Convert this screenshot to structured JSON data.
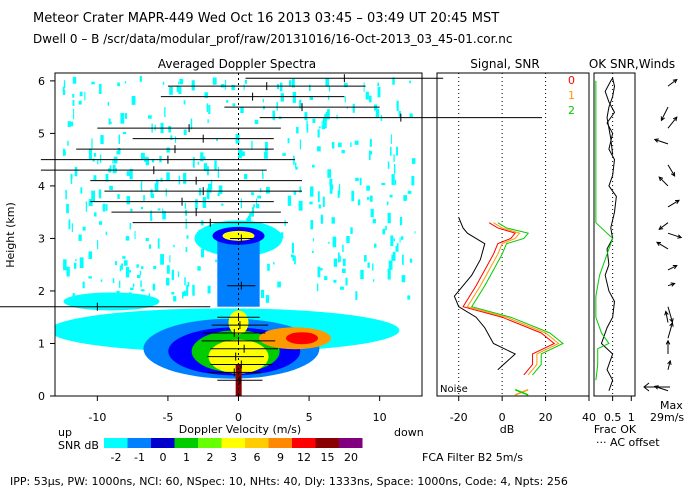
{
  "header": {
    "line1": "Meteor Crater   MAPR-449   Wed Oct 16 2013 03:45 – 03:49 UT 20:45 MST",
    "line2": "Dwell   0 –   B    /scr/data/modular_prof/raw/20131016/16-Oct-2013_03_45-01.cor.nc"
  },
  "footer": {
    "text": "IPP:  53μs,   PW: 1000ns,   NCI:  60,   NSpec: 10,  NHts: 40,   Dly: 1333ns,   Space: 1000ns,   Code: 4,   Npts: 256",
    "fca": "FCA Filter B2   5m/s"
  },
  "colors": {
    "cyan": "#00ffff",
    "blue": "#0000ff",
    "green": "#00cc00",
    "yellow": "#ffff00",
    "orange": "#ff9900",
    "red": "#ff0000",
    "wine": "#880000",
    "purple": "#800080",
    "gray": "#a0a0a0"
  },
  "chart_data": [
    {
      "type": "heatmap",
      "title": "Averaged Doppler Spectra",
      "xlabel": "Doppler Velocity (m/s)",
      "ylabel": "Height (km)",
      "xlim": [
        -13,
        13
      ],
      "ylim": [
        0,
        6.15
      ],
      "xticks": [
        -10,
        -5,
        0,
        5,
        10
      ],
      "yticks": [
        0,
        1,
        2,
        3,
        4,
        5,
        6
      ],
      "up_label": "up",
      "down_label": "down",
      "colorbar": {
        "label": "SNR dB",
        "levels": [
          "-2",
          "-1",
          "0",
          "1",
          "2",
          "3",
          "6",
          "9",
          "12",
          "15",
          "20"
        ],
        "colors": [
          "#00ffff",
          "#0080ff",
          "#0000cc",
          "#00cc00",
          "#66ff00",
          "#ffff00",
          "#ffcc00",
          "#ff8800",
          "#ff0000",
          "#880000",
          "#800080"
        ]
      },
      "moment_bars": [
        {
          "height": 0.3,
          "center": 0.1,
          "half_width": 1.6
        },
        {
          "height": 0.45,
          "center": -0.3,
          "half_width": 1.9
        },
        {
          "height": 0.6,
          "center": 0.2,
          "half_width": 2.2
        },
        {
          "height": 0.75,
          "center": -0.2,
          "half_width": 2.0
        },
        {
          "height": 0.9,
          "center": 0.4,
          "half_width": 2.4
        },
        {
          "height": 1.05,
          "center": 0.0,
          "half_width": 2.6
        },
        {
          "height": 1.2,
          "center": -0.3,
          "half_width": 2.2
        },
        {
          "height": 1.35,
          "center": 0.1,
          "half_width": 2.0
        },
        {
          "height": 1.5,
          "center": 0.0,
          "half_width": 1.5
        },
        {
          "height": 1.7,
          "center": -10.0,
          "half_width": 8.0
        },
        {
          "height": 2.1,
          "center": 0.2,
          "half_width": 1.0
        },
        {
          "height": 3.0,
          "center": 0.2,
          "half_width": 0.8
        },
        {
          "height": 3.3,
          "center": -2.0,
          "half_width": 5.5
        },
        {
          "height": 3.5,
          "center": -3.0,
          "half_width": 6.0
        },
        {
          "height": 3.7,
          "center": -4.0,
          "half_width": 6.5
        },
        {
          "height": 3.9,
          "center": -2.5,
          "half_width": 7.0
        },
        {
          "height": 4.1,
          "center": -3.0,
          "half_width": 7.5
        },
        {
          "height": 4.3,
          "center": -6.0,
          "half_width": 8.0
        },
        {
          "height": 4.5,
          "center": -5.0,
          "half_width": 9.0
        },
        {
          "height": 4.7,
          "center": -4.5,
          "half_width": 7.0
        },
        {
          "height": 4.9,
          "center": -2.5,
          "half_width": 5.0
        },
        {
          "height": 5.1,
          "center": -3.5,
          "half_width": 6.5
        },
        {
          "height": 5.3,
          "center": 11.5,
          "half_width": 10.0
        },
        {
          "height": 5.5,
          "center": 4.5,
          "half_width": 5.5
        },
        {
          "height": 5.7,
          "center": 1.0,
          "half_width": 6.5
        },
        {
          "height": 5.9,
          "center": 2.0,
          "half_width": 7.0
        },
        {
          "height": 6.05,
          "center": 7.5,
          "half_width": 7.0
        }
      ]
    },
    {
      "type": "line",
      "title": "Signal, SNR",
      "xlabel": "dB",
      "xlim": [
        -30,
        40
      ],
      "ylim": [
        0,
        6.15
      ],
      "xticks": [
        -20,
        0,
        20,
        40
      ],
      "noise_label": "Noise",
      "legend": [
        "0",
        "1",
        "2"
      ],
      "series": [
        {
          "name": "signal",
          "color": "#000000",
          "x": [
            -2,
            6,
            -4,
            -8,
            -12,
            -20,
            -22,
            -14,
            -10,
            -8,
            -16,
            -18,
            -20
          ],
          "y": [
            0.5,
            0.8,
            1.0,
            1.3,
            1.5,
            1.7,
            1.9,
            2.3,
            2.6,
            2.9,
            3.1,
            3.2,
            3.4
          ]
        },
        {
          "name": "0",
          "color": "#ff0000",
          "x": [
            10,
            14,
            14,
            24,
            18,
            0,
            -18,
            -12,
            -8,
            -4,
            -2,
            4,
            6,
            -2,
            -6
          ],
          "y": [
            0.4,
            0.6,
            0.8,
            1.0,
            1.2,
            1.5,
            1.7,
            2.1,
            2.4,
            2.7,
            2.9,
            3.0,
            3.1,
            3.2,
            3.3
          ]
        },
        {
          "name": "1",
          "color": "#ff9900",
          "x": [
            12,
            16,
            16,
            26,
            20,
            2,
            -16,
            -10,
            -6,
            -2,
            0,
            6,
            8,
            0,
            -4
          ],
          "y": [
            0.4,
            0.6,
            0.8,
            1.0,
            1.2,
            1.5,
            1.7,
            2.1,
            2.4,
            2.7,
            2.9,
            3.0,
            3.1,
            3.2,
            3.3
          ]
        },
        {
          "name": "2",
          "color": "#00cc00",
          "x": [
            14,
            18,
            18,
            28,
            22,
            4,
            -14,
            -8,
            -4,
            0,
            2,
            10,
            12,
            2,
            -2
          ],
          "y": [
            0.4,
            0.6,
            0.8,
            1.0,
            1.2,
            1.5,
            1.7,
            2.1,
            2.4,
            2.7,
            2.9,
            3.0,
            3.1,
            3.2,
            3.3
          ]
        }
      ]
    },
    {
      "type": "line",
      "title": "OK SNR,Winds",
      "xlabel": "Frac OK",
      "xlim": [
        0,
        1.1
      ],
      "ylim": [
        0,
        6.15
      ],
      "xticks": [
        "0.5",
        "1"
      ],
      "ac_label": "··· AC offset",
      "max_label": "Max",
      "max_value": "29m/s",
      "series": [
        {
          "name": "frac_ok",
          "color": "#000000",
          "x": [
            0.4,
            0.5,
            0.35,
            0.5,
            0.2,
            0.35,
            0.5,
            0.55,
            0.4,
            0.3,
            0.4,
            0.35,
            0.5,
            0.45,
            0.55,
            0.6,
            0.4,
            0.5,
            0.55,
            0.4,
            0.5,
            0.35,
            0.55,
            0.4,
            0.3,
            0.45,
            0.5,
            0.55,
            0.5,
            0.4,
            0.35,
            0.4,
            0.45,
            0.5
          ],
          "y": [
            0.1,
            0.3,
            0.5,
            0.8,
            1.0,
            1.3,
            1.5,
            1.8,
            2.0,
            2.3,
            2.5,
            2.8,
            3.0,
            3.2,
            3.5,
            3.8,
            4.0,
            4.2,
            4.5,
            4.7,
            5.0,
            5.2,
            5.4,
            5.6,
            5.8,
            6.0,
            6.05,
            5.9,
            5.7,
            5.5,
            5.3,
            5.1,
            4.9,
            4.6
          ]
        },
        {
          "name": "snr_ok",
          "color": "#00cc00",
          "x": [
            0.05,
            0.1,
            0.1,
            0.4,
            0.2,
            0.05,
            0.05,
            0.15,
            0.3,
            0.4,
            0.5,
            0.35,
            0.05,
            0.05,
            0.05
          ],
          "y": [
            0.3,
            0.6,
            0.9,
            1.0,
            1.2,
            1.5,
            1.9,
            2.3,
            2.6,
            2.8,
            3.0,
            3.1,
            3.3,
            4.5,
            6.0
          ]
        }
      ],
      "winds": [
        {
          "height": 0.1,
          "u": -0.6,
          "v": 0.2
        },
        {
          "height": 0.5,
          "u": 0.1,
          "v": 0.4
        },
        {
          "height": 0.8,
          "u": 0.0,
          "v": 0.6
        },
        {
          "height": 1.1,
          "u": 0.2,
          "v": 0.7
        },
        {
          "height": 1.4,
          "u": -0.1,
          "v": 0.5
        },
        {
          "height": 1.7,
          "u": 0.2,
          "v": -0.7
        },
        {
          "height": 2.1,
          "u": 0.3,
          "v": 0.1
        },
        {
          "height": 2.4,
          "u": 0.4,
          "v": 0.2
        },
        {
          "height": 2.8,
          "u": -0.5,
          "v": 0.3
        },
        {
          "height": 3.1,
          "u": 0.6,
          "v": -0.2
        },
        {
          "height": 3.3,
          "u": -0.4,
          "v": -0.3
        },
        {
          "height": 3.6,
          "u": 0.5,
          "v": 0.3
        },
        {
          "height": 4.0,
          "u": -0.4,
          "v": 0.4
        },
        {
          "height": 4.4,
          "u": 0.3,
          "v": -0.5
        },
        {
          "height": 4.8,
          "u": -0.6,
          "v": 0.2
        },
        {
          "height": 5.1,
          "u": 0.4,
          "v": 0.5
        },
        {
          "height": 5.5,
          "u": -0.3,
          "v": -0.6
        },
        {
          "height": 5.9,
          "u": 0.4,
          "v": 0.3
        }
      ]
    }
  ]
}
